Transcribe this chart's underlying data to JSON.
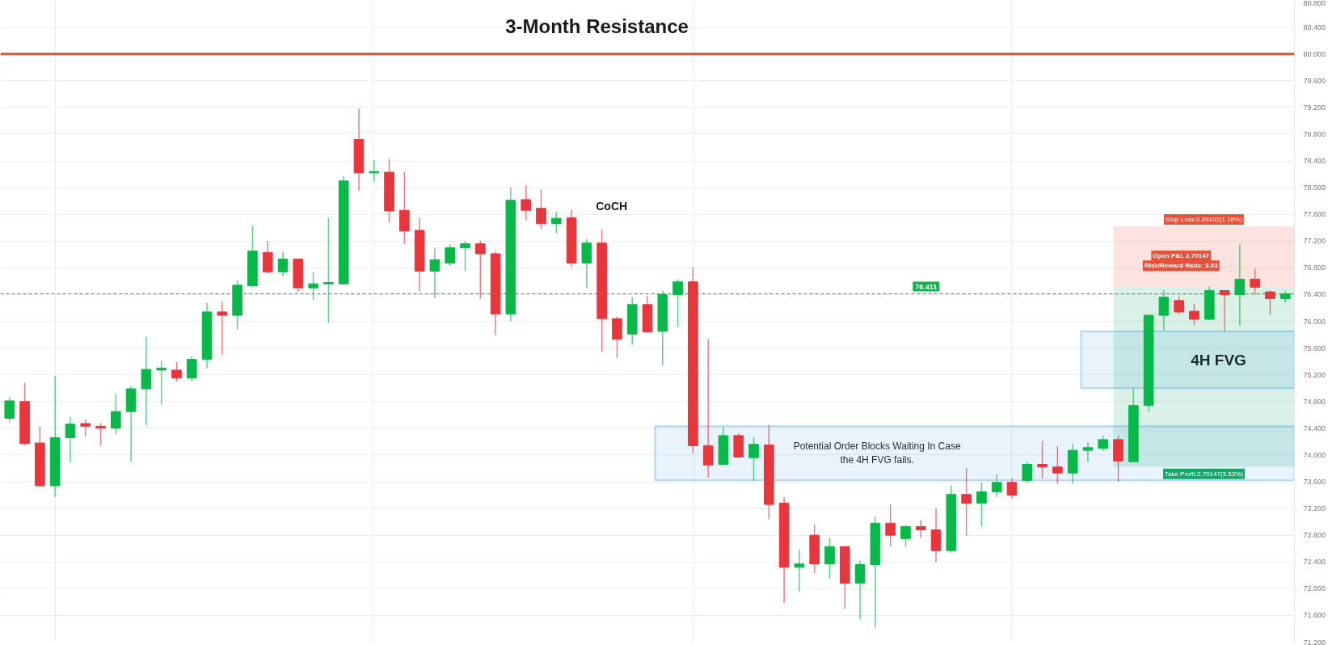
{
  "chart_data": {
    "type": "candlestick",
    "title": "3-Month Resistance",
    "categories": [
      null,
      null,
      null,
      null,
      null,
      null,
      null,
      null,
      null,
      null,
      null,
      null,
      null,
      null,
      null,
      null,
      null,
      null,
      null,
      null,
      null,
      null,
      null,
      null,
      null,
      null,
      null,
      null,
      null,
      null,
      null,
      null,
      null,
      null,
      null,
      null,
      null,
      null,
      null,
      null,
      null,
      null,
      null,
      null,
      null,
      null,
      null,
      null,
      null,
      null,
      null,
      null,
      null,
      null,
      null,
      null,
      null,
      null,
      null,
      null,
      null,
      null,
      null,
      null,
      null,
      null,
      null,
      null,
      null,
      null,
      null,
      null,
      null,
      null,
      null,
      null,
      null,
      null,
      null,
      null,
      null,
      null,
      null,
      null,
      null
    ],
    "ohlc": [
      [
        74.55,
        74.87,
        74.49,
        74.81
      ],
      [
        74.8,
        75.08,
        74.14,
        74.17
      ],
      [
        74.18,
        74.43,
        73.52,
        73.54
      ],
      [
        73.54,
        75.18,
        73.37,
        74.26
      ],
      [
        74.26,
        74.57,
        73.89,
        74.46
      ],
      [
        74.47,
        74.53,
        74.28,
        74.43
      ],
      [
        74.43,
        74.48,
        74.14,
        74.4
      ],
      [
        74.4,
        74.92,
        74.31,
        74.65
      ],
      [
        74.65,
        75.03,
        73.9,
        74.99
      ],
      [
        74.99,
        75.77,
        74.45,
        75.28
      ],
      [
        75.27,
        75.41,
        74.75,
        75.3
      ],
      [
        75.27,
        75.39,
        75.1,
        75.15
      ],
      [
        75.15,
        75.48,
        75.1,
        75.43
      ],
      [
        75.43,
        76.28,
        75.3,
        76.14
      ],
      [
        76.14,
        76.29,
        75.5,
        76.09
      ],
      [
        76.09,
        76.61,
        75.88,
        76.54
      ],
      [
        76.53,
        77.43,
        76.52,
        77.05
      ],
      [
        77.03,
        77.2,
        76.72,
        76.74
      ],
      [
        76.74,
        77.04,
        76.67,
        76.93
      ],
      [
        76.93,
        76.93,
        76.44,
        76.5
      ],
      [
        76.5,
        76.74,
        76.32,
        76.56
      ],
      [
        76.56,
        77.55,
        75.98,
        76.58
      ],
      [
        76.56,
        78.17,
        76.55,
        78.1
      ],
      [
        78.72,
        79.18,
        77.95,
        78.22
      ],
      [
        78.22,
        78.41,
        78.09,
        78.24
      ],
      [
        78.23,
        78.43,
        77.48,
        77.65
      ],
      [
        77.66,
        78.23,
        77.16,
        77.35
      ],
      [
        77.36,
        77.55,
        76.45,
        76.75
      ],
      [
        76.75,
        77.1,
        76.35,
        76.92
      ],
      [
        76.87,
        77.15,
        76.83,
        77.1
      ],
      [
        77.1,
        77.2,
        76.75,
        77.16
      ],
      [
        77.16,
        77.21,
        76.34,
        77.01
      ],
      [
        77.01,
        77.05,
        75.79,
        76.11
      ],
      [
        76.11,
        78.0,
        76.0,
        77.81
      ],
      [
        77.82,
        78.03,
        77.51,
        77.66
      ],
      [
        77.69,
        77.97,
        77.38,
        77.46
      ],
      [
        77.46,
        77.64,
        77.32,
        77.54
      ],
      [
        77.55,
        77.67,
        76.81,
        76.87
      ],
      [
        76.87,
        77.23,
        76.5,
        77.17
      ],
      [
        77.17,
        77.38,
        75.54,
        76.04
      ],
      [
        76.04,
        76.07,
        75.45,
        75.73
      ],
      [
        75.81,
        76.36,
        75.65,
        76.25
      ],
      [
        76.25,
        76.38,
        75.83,
        75.84
      ],
      [
        75.85,
        76.46,
        75.34,
        76.4
      ],
      [
        76.4,
        76.63,
        75.91,
        76.59
      ],
      [
        76.59,
        76.81,
        74.02,
        74.14
      ],
      [
        74.14,
        75.73,
        73.66,
        73.85
      ],
      [
        73.86,
        74.42,
        73.85,
        74.29
      ],
      [
        74.29,
        74.32,
        73.96,
        73.97
      ],
      [
        73.96,
        74.27,
        73.61,
        74.16
      ],
      [
        74.15,
        74.45,
        73.04,
        73.26
      ],
      [
        73.28,
        73.37,
        71.79,
        72.32
      ],
      [
        72.32,
        72.58,
        71.96,
        72.37
      ],
      [
        72.8,
        72.96,
        72.23,
        72.37
      ],
      [
        72.37,
        72.76,
        72.15,
        72.63
      ],
      [
        72.63,
        72.63,
        71.7,
        72.08
      ],
      [
        72.08,
        72.42,
        71.54,
        72.36
      ],
      [
        72.36,
        73.08,
        71.42,
        72.98
      ],
      [
        72.98,
        73.26,
        72.63,
        72.8
      ],
      [
        72.75,
        72.95,
        72.63,
        72.93
      ],
      [
        72.93,
        73.03,
        72.76,
        72.88
      ],
      [
        72.88,
        73.2,
        72.4,
        72.57
      ],
      [
        72.57,
        73.55,
        72.54,
        73.41
      ],
      [
        73.41,
        73.81,
        72.79,
        73.28
      ],
      [
        73.28,
        73.59,
        72.93,
        73.45
      ],
      [
        73.45,
        73.71,
        73.37,
        73.59
      ],
      [
        73.59,
        73.65,
        73.35,
        73.4
      ],
      [
        73.62,
        73.9,
        73.58,
        73.86
      ],
      [
        73.86,
        74.21,
        73.65,
        73.82
      ],
      [
        73.82,
        74.13,
        73.57,
        73.73
      ],
      [
        73.73,
        74.17,
        73.57,
        74.07
      ],
      [
        74.07,
        74.19,
        73.89,
        74.11
      ],
      [
        74.1,
        74.29,
        74.06,
        74.23
      ],
      [
        74.23,
        74.29,
        73.6,
        73.91
      ],
      [
        73.9,
        74.99,
        73.89,
        74.74
      ],
      [
        74.74,
        76.1,
        74.65,
        76.09
      ],
      [
        76.09,
        76.47,
        75.86,
        76.36
      ],
      [
        76.31,
        76.37,
        76.11,
        76.14
      ],
      [
        76.15,
        76.26,
        75.94,
        76.03
      ],
      [
        76.03,
        76.52,
        76.02,
        76.46
      ],
      [
        76.46,
        76.46,
        75.85,
        76.4
      ],
      [
        76.4,
        77.15,
        75.93,
        76.63
      ],
      [
        76.63,
        76.79,
        76.4,
        76.51
      ],
      [
        76.44,
        76.46,
        76.1,
        76.34
      ],
      [
        76.34,
        76.45,
        76.28,
        76.41
      ]
    ],
    "colors": [
      "#08b94a",
      "#e8363c",
      "#e8363c",
      "#08b94a",
      "#08b94a",
      "#e8363c",
      "#e8363c",
      "#08b94a",
      "#08b94a",
      "#08b94a",
      "#08b94a",
      "#e8363c",
      "#08b94a",
      "#08b94a",
      "#e8363c",
      "#08b94a",
      "#08b94a",
      "#e8363c",
      "#08b94a",
      "#e8363c",
      "#08b94a",
      "#08b94a",
      "#08b94a",
      "#e8363c",
      "#08b94a",
      "#e8363c",
      "#e8363c",
      "#e8363c",
      "#08b94a",
      "#08b94a",
      "#08b94a",
      "#e8363c",
      "#e8363c",
      "#08b94a",
      "#e8363c",
      "#e8363c",
      "#08b94a",
      "#e8363c",
      "#08b94a",
      "#e8363c",
      "#e8363c",
      "#08b94a",
      "#e8363c",
      "#08b94a",
      "#08b94a",
      "#e8363c",
      "#e8363c",
      "#08b94a",
      "#e8363c",
      "#08b94a",
      "#e8363c",
      "#e8363c",
      "#08b94a",
      "#e8363c",
      "#08b94a",
      "#e8363c",
      "#08b94a",
      "#08b94a",
      "#e8363c",
      "#08b94a",
      "#e8363c",
      "#e8363c",
      "#08b94a",
      "#e8363c",
      "#08b94a",
      "#08b94a",
      "#e8363c",
      "#08b94a",
      "#e8363c",
      "#e8363c",
      "#08b94a",
      "#08b94a",
      "#08b94a",
      "#e8363c",
      "#08b94a",
      "#08b94a",
      "#08b94a",
      "#e8363c",
      "#e8363c",
      "#08b94a",
      "#e8363c",
      "#08b94a",
      "#e8363c",
      "#e8363c",
      "#08b94a"
    ],
    "ylim": [
      71.2,
      80.8
    ],
    "yticks": [
      {
        "value": 71.2,
        "label": "71.200"
      },
      {
        "value": 71.6,
        "label": "71.600"
      },
      {
        "value": 72.0,
        "label": "72.000"
      },
      {
        "value": 72.4,
        "label": "72.400"
      },
      {
        "value": 72.8,
        "label": "72.800"
      },
      {
        "value": 73.2,
        "label": "73.200"
      },
      {
        "value": 73.6,
        "label": "73.600"
      },
      {
        "value": 74.0,
        "label": "74.000"
      },
      {
        "value": 74.4,
        "label": "74.400"
      },
      {
        "value": 74.8,
        "label": "74.800"
      },
      {
        "value": 75.2,
        "label": "75.200"
      },
      {
        "value": 75.6,
        "label": "75.600"
      },
      {
        "value": 76.0,
        "label": "76.000"
      },
      {
        "value": 76.4,
        "label": "76.400"
      },
      {
        "value": 76.8,
        "label": "76.800"
      },
      {
        "value": 77.2,
        "label": "77.200"
      },
      {
        "value": 77.6,
        "label": "77.600"
      },
      {
        "value": 78.0,
        "label": "78.000"
      },
      {
        "value": 78.4,
        "label": "78.400"
      },
      {
        "value": 78.8,
        "label": "78.800"
      },
      {
        "value": 79.2,
        "label": "79.200"
      },
      {
        "value": 79.6,
        "label": "79.600"
      },
      {
        "value": 80.0,
        "label": "80.000"
      },
      {
        "value": 80.4,
        "label": "80.400"
      },
      {
        "value": 80.8,
        "label": "80.800"
      }
    ],
    "tick_labels": "y",
    "grid": true,
    "ref_lines": [
      {
        "axis": "y",
        "value": 80.0,
        "color": "#e8523a",
        "line_style": "solid"
      },
      {
        "axis": "y",
        "value": 76.411,
        "label": "76.411",
        "color": "#08b94a",
        "line_style": "dashed"
      }
    ],
    "bands": [
      {
        "axis": "y",
        "from": 76.51,
        "to": 77.42,
        "label": "Stop Loss:0.89102(1.16%)",
        "color": "#e8523a"
      },
      {
        "axis": "y",
        "from": 73.82,
        "to": 76.51,
        "label": "Take Profit:2.70147(3.53%)",
        "color": "#12a86a"
      },
      {
        "axis": "y",
        "from": 75.0,
        "to": 75.85,
        "label": "4H FVG",
        "color": "#1e88e5"
      },
      {
        "axis": "y",
        "from": 73.62,
        "to": 74.43,
        "label": "Potential Order Blocks Waiting In Case the 4H FVG fails.",
        "color": "#1e88e5"
      }
    ],
    "annotations": [
      "CoCH",
      "Open P&L 2.70147",
      "Risk/Reward Ratio: 3.03"
    ]
  }
}
